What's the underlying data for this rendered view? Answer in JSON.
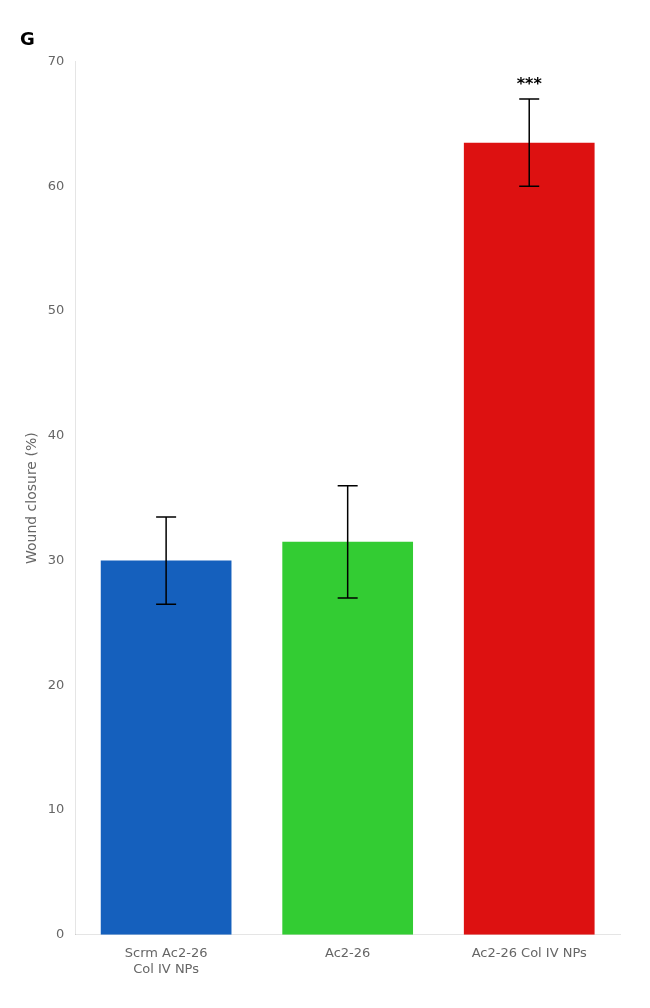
{
  "chart_data": {
    "type": "bar",
    "title": "G",
    "categories": [
      "Scrm Ac2-26\nCol IV NPs",
      "Ac2-26",
      "Ac2-26 Col IV NPs"
    ],
    "values": [
      30.0,
      31.5,
      63.5
    ],
    "errors": [
      3.5,
      4.5,
      3.5
    ],
    "colors": [
      "#1560bd",
      "#33cc33",
      "#dd1111"
    ],
    "ylabel": "Wound closure (%)",
    "ylim": [
      0,
      70
    ],
    "yticks": [
      0,
      10,
      20,
      30,
      40,
      50,
      60,
      70
    ],
    "grid": false,
    "annotations": [
      {
        "text": "***",
        "category": "Ac2-26 Col IV NPs"
      }
    ]
  }
}
